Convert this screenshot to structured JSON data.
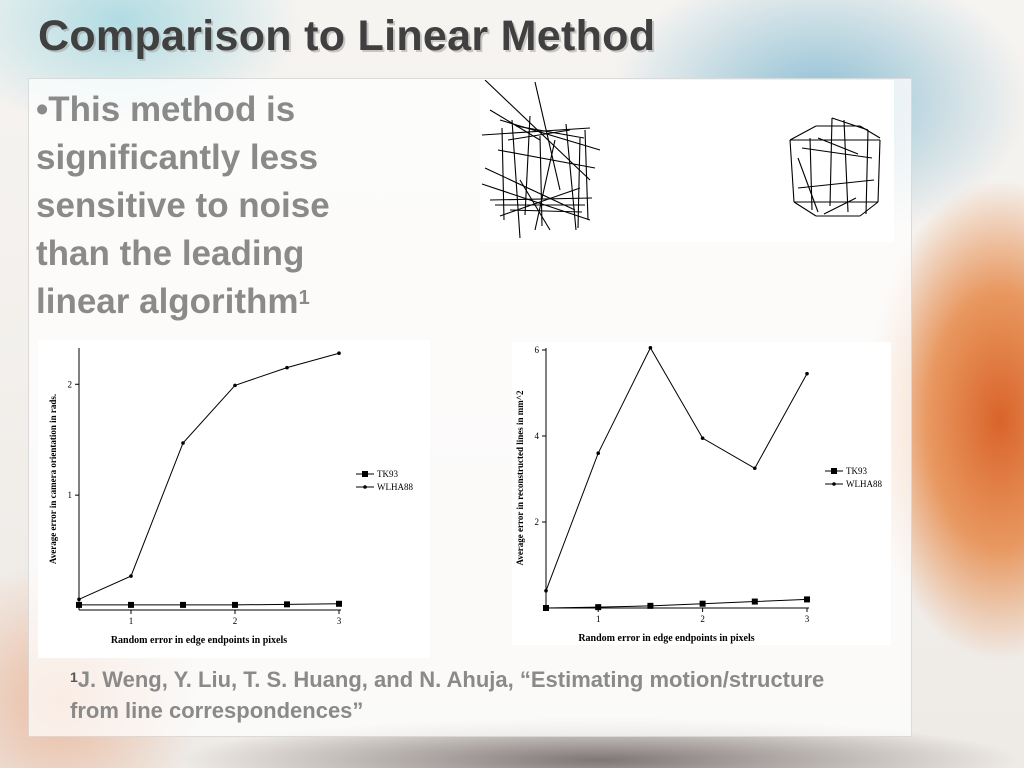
{
  "slide": {
    "title": "Comparison to Linear Method",
    "bullet_marker": "•",
    "bullet_text": "This method is significantly less sensitive to noise than the leading linear algorithm",
    "bullet_sup": "1",
    "footnote_sup": "1",
    "footnote_text": "J. Weng, Y. Liu, T. S. Huang, and N. Ahuja, “Estimating motion/structure from line correspondences”"
  },
  "chart_data": [
    {
      "type": "line",
      "xlabel": "Random error in edge endpoints in pixels",
      "ylabel": "Average error in camera orientation in rads.",
      "xlim": [
        0.5,
        3
      ],
      "ylim": [
        0,
        2.3
      ],
      "xticks": [
        1,
        2,
        3
      ],
      "yticks": [
        1,
        2
      ],
      "x": [
        0.5,
        1,
        1.5,
        2,
        2.5,
        3
      ],
      "series": [
        {
          "name": "TK93",
          "marker": "square",
          "values": [
            0.01,
            0.01,
            0.01,
            0.01,
            0.015,
            0.02
          ]
        },
        {
          "name": "WLHA88",
          "marker": "dot",
          "values": [
            0.06,
            0.27,
            1.47,
            1.99,
            2.15,
            2.28
          ]
        }
      ],
      "legend": "right"
    },
    {
      "type": "line",
      "xlabel": "Random error in edge endpoints in pixels",
      "ylabel": "Average error in reconstructed lines in mm^2",
      "xlim": [
        0.5,
        3
      ],
      "ylim": [
        0,
        6
      ],
      "xticks": [
        1,
        2,
        3
      ],
      "yticks": [
        2,
        4,
        6
      ],
      "x": [
        0.5,
        1,
        1.5,
        2,
        2.5,
        3
      ],
      "series": [
        {
          "name": "TK93",
          "marker": "square",
          "values": [
            0,
            0.02,
            0.05,
            0.1,
            0.15,
            0.2
          ]
        },
        {
          "name": "WLHA88",
          "marker": "dot",
          "values": [
            0.4,
            3.6,
            6.05,
            3.95,
            3.25,
            5.45
          ]
        }
      ],
      "legend": "right"
    }
  ]
}
